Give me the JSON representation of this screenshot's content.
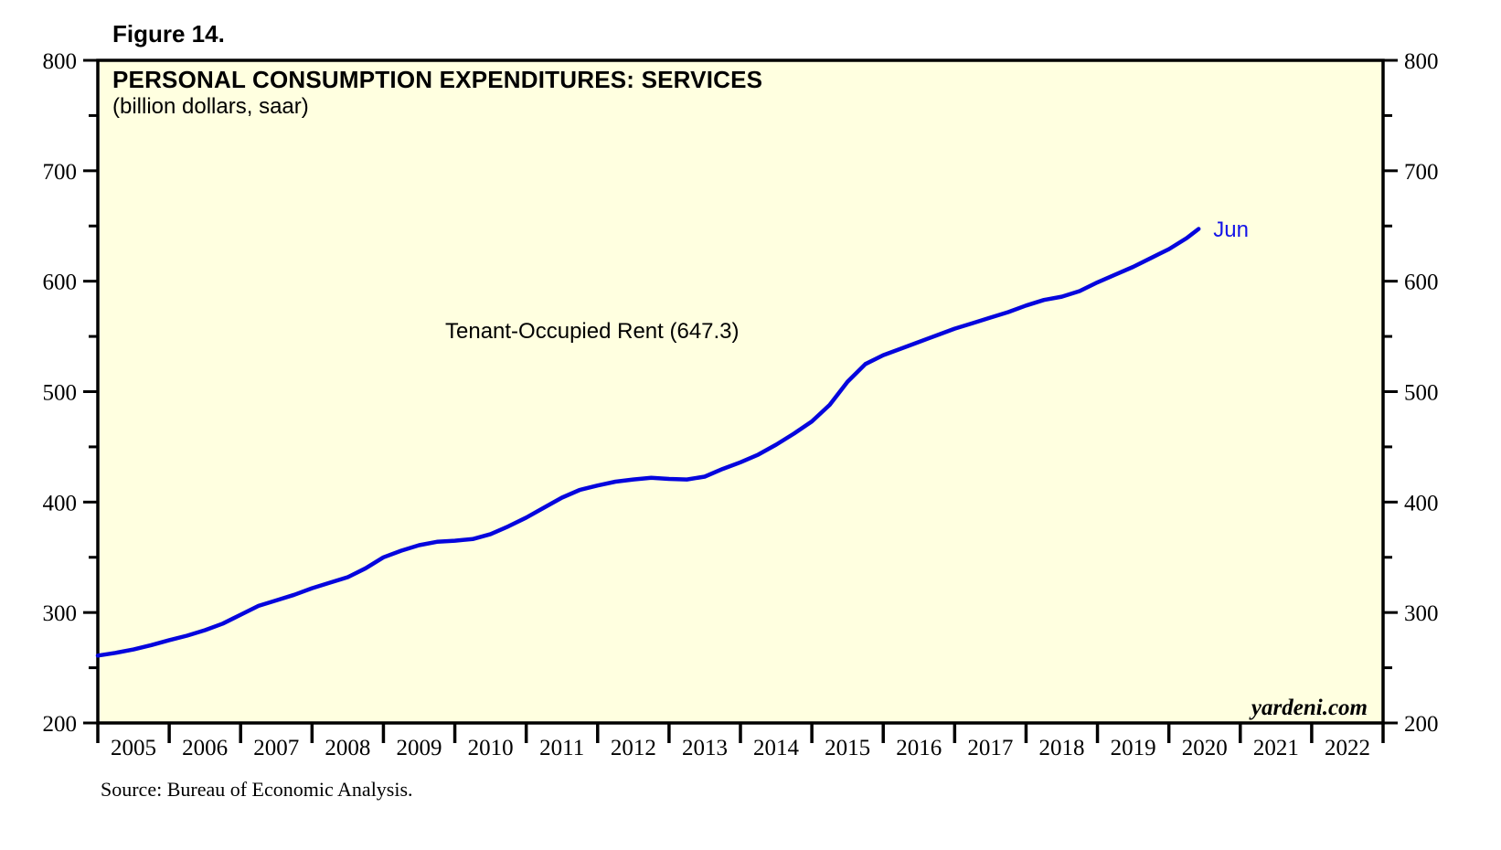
{
  "figure": {
    "label": "Figure 14."
  },
  "chart": {
    "title": "PERSONAL CONSUMPTION EXPENDITURES: SERVICES",
    "subtitle": "(billion dollars, saar)",
    "annotation": "Tenant-Occupied Rent (647.3)",
    "end_label": "Jun",
    "watermark": "yardeni.com"
  },
  "footer": {
    "source": "Source: Bureau of Economic Analysis."
  },
  "colors": {
    "line": "#0505dd",
    "end_label": "#1414e8",
    "plot_bg": "#ffffe0",
    "axis": "#000000"
  },
  "chart_data": {
    "type": "line",
    "title": "PERSONAL CONSUMPTION EXPENDITURES: SERVICES",
    "subtitle": "(billion dollars, saar)",
    "xlabel": "",
    "ylabel": "billion dollars, saar",
    "xlim": [
      2005,
      2023
    ],
    "ylim": [
      200,
      800
    ],
    "ytick_major": [
      200,
      300,
      400,
      500,
      600,
      700,
      800
    ],
    "ytick_minor": [
      250,
      350,
      450,
      550,
      650,
      750
    ],
    "xtick_years": [
      "2005",
      "2006",
      "2007",
      "2008",
      "2009",
      "2010",
      "2011",
      "2012",
      "2013",
      "2014",
      "2015",
      "2016",
      "2017",
      "2018",
      "2019",
      "2020",
      "2021",
      "2022"
    ],
    "grid": false,
    "legend_position": "none",
    "annotation": "Tenant-Occupied Rent (647.3)",
    "end_label": "Jun",
    "series": [
      {
        "name": "Tenant-Occupied Rent",
        "latest_period": "Jun 2020",
        "latest_value": 647.3,
        "x": [
          2005.0,
          2005.25,
          2005.5,
          2005.75,
          2006.0,
          2006.25,
          2006.5,
          2006.75,
          2007.0,
          2007.25,
          2007.5,
          2007.75,
          2008.0,
          2008.25,
          2008.5,
          2008.75,
          2009.0,
          2009.25,
          2009.5,
          2009.75,
          2010.0,
          2010.25,
          2010.5,
          2010.75,
          2011.0,
          2011.25,
          2011.5,
          2011.75,
          2012.0,
          2012.25,
          2012.5,
          2012.75,
          2013.0,
          2013.25,
          2013.5,
          2013.75,
          2014.0,
          2014.25,
          2014.5,
          2014.75,
          2015.0,
          2015.25,
          2015.5,
          2015.75,
          2016.0,
          2016.25,
          2016.5,
          2016.75,
          2017.0,
          2017.25,
          2017.5,
          2017.75,
          2018.0,
          2018.25,
          2018.5,
          2018.75,
          2019.0,
          2019.25,
          2019.5,
          2019.75,
          2020.0,
          2020.25,
          2020.417
        ],
        "values": [
          261,
          263.5,
          266.5,
          270.5,
          275,
          279,
          284,
          290,
          298,
          306,
          311,
          316,
          322,
          327,
          332,
          340,
          350,
          356,
          361,
          364,
          365,
          366.5,
          371,
          378,
          386,
          395,
          404,
          411,
          415,
          418.5,
          420.5,
          422,
          421,
          420.5,
          423,
          430,
          436,
          443,
          452,
          462,
          473,
          488,
          509,
          525,
          533,
          539,
          545,
          551,
          557,
          562,
          567,
          572,
          578,
          583,
          586,
          591,
          599,
          606,
          613,
          621,
          629,
          639,
          647.3
        ]
      }
    ]
  }
}
